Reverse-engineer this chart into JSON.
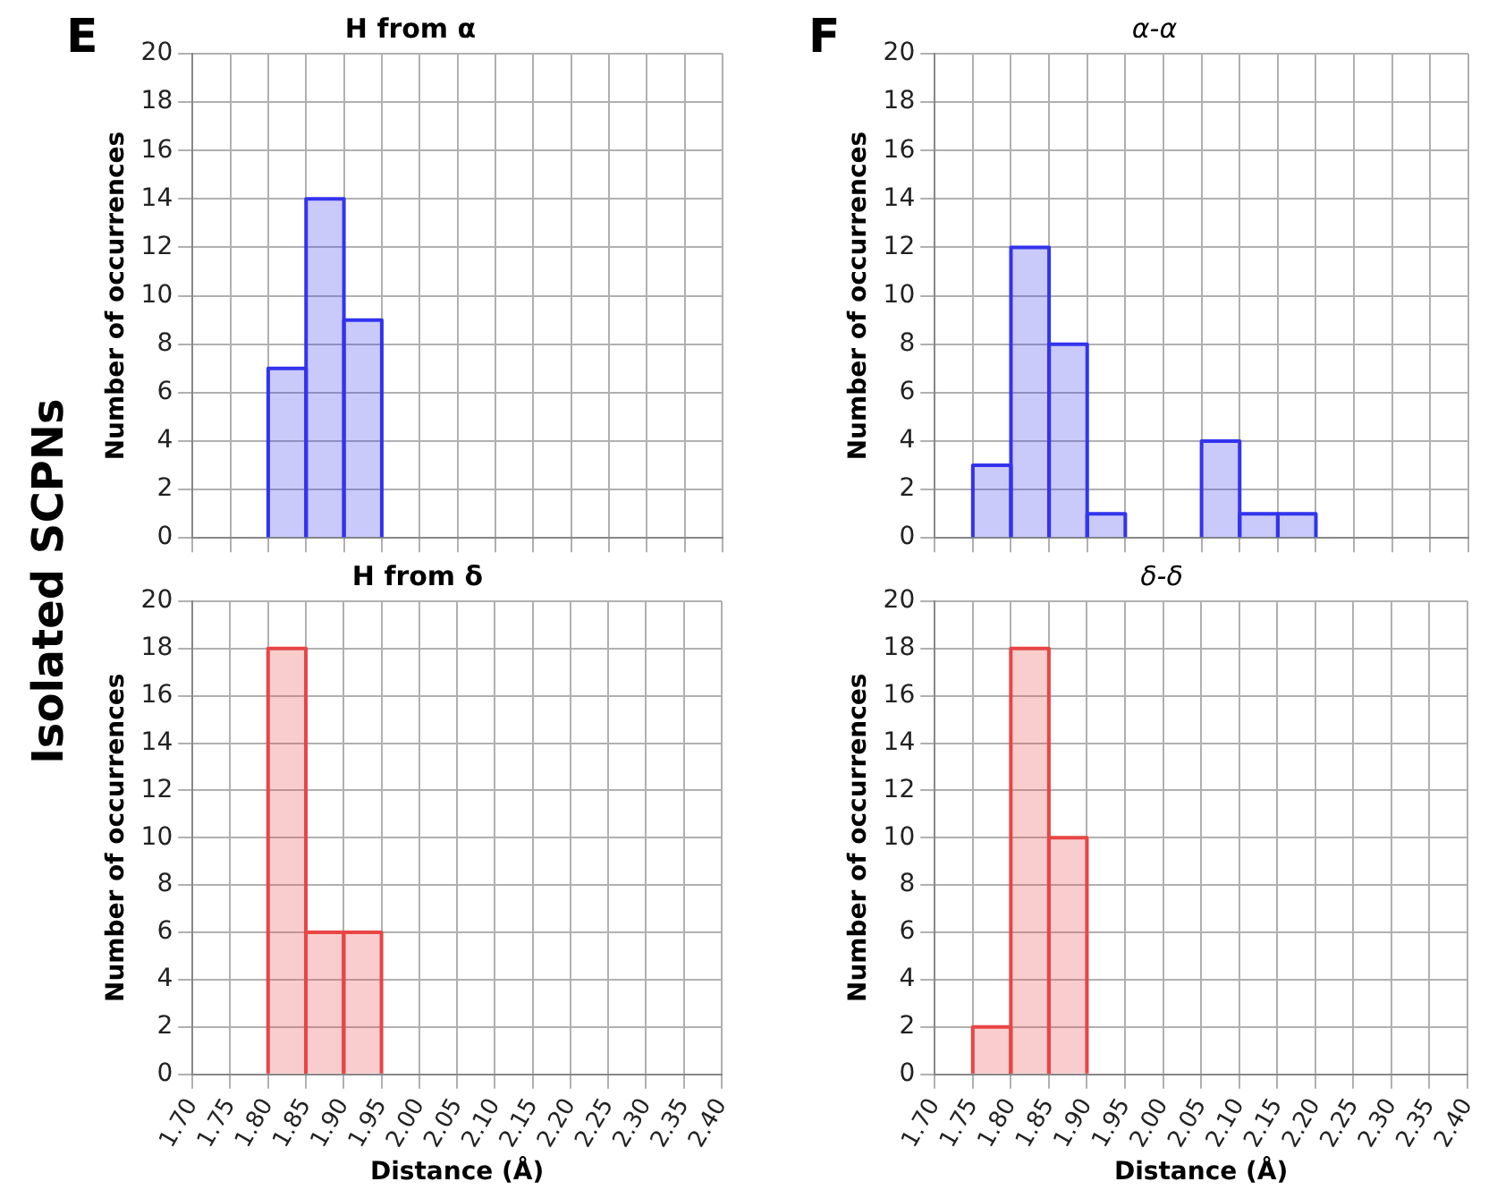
{
  "chart_data": [
    {
      "type": "histogram",
      "title": "H from α",
      "ylabel": "Number of occurrences",
      "annotations": [
        "E",
        "Isolated SCPNs"
      ],
      "bins": [
        1.7,
        1.75,
        1.8,
        1.85,
        1.9,
        1.95,
        2.0,
        2.05,
        2.1,
        2.15,
        2.2,
        2.25,
        2.3,
        2.35,
        2.4
      ],
      "values": [
        0,
        0,
        7,
        14,
        9,
        0,
        0,
        0,
        0,
        0,
        0,
        0,
        0,
        0
      ],
      "color": "#3333ee",
      "xlim": [
        1.7,
        2.4
      ],
      "xticks": [
        {
          "value": 1.7,
          "label": null
        },
        {
          "value": 1.75,
          "label": null
        },
        {
          "value": 1.8,
          "label": null
        },
        {
          "value": 1.85,
          "label": null
        },
        {
          "value": 1.9,
          "label": null
        },
        {
          "value": 1.95,
          "label": null
        },
        {
          "value": 2.0,
          "label": null
        },
        {
          "value": 2.05,
          "label": null
        },
        {
          "value": 2.1,
          "label": null
        },
        {
          "value": 2.15,
          "label": null
        },
        {
          "value": 2.2,
          "label": null
        },
        {
          "value": 2.25,
          "label": null
        },
        {
          "value": 2.3,
          "label": null
        },
        {
          "value": 2.35,
          "label": null
        },
        {
          "value": 2.4,
          "label": null
        }
      ],
      "ylim": [
        0,
        20
      ],
      "yticks": [
        0,
        2,
        4,
        6,
        8,
        10,
        12,
        14,
        16,
        18,
        20
      ],
      "grid": true,
      "tick_labels": "y"
    },
    {
      "type": "histogram",
      "title": "α-α",
      "ylabel": "Number of occurrences",
      "annotations": [
        "F"
      ],
      "bins": [
        1.7,
        1.75,
        1.8,
        1.85,
        1.9,
        1.95,
        2.0,
        2.05,
        2.1,
        2.15,
        2.2,
        2.25,
        2.3,
        2.35,
        2.4
      ],
      "values": [
        0,
        3,
        12,
        8,
        1,
        0,
        0,
        4,
        1,
        1,
        0,
        0,
        0,
        0
      ],
      "color": "#3333ee",
      "xlim": [
        1.7,
        2.4
      ],
      "xticks": [
        {
          "value": 1.7,
          "label": null
        },
        {
          "value": 1.75,
          "label": null
        },
        {
          "value": 1.8,
          "label": null
        },
        {
          "value": 1.85,
          "label": null
        },
        {
          "value": 1.9,
          "label": null
        },
        {
          "value": 1.95,
          "label": null
        },
        {
          "value": 2.0,
          "label": null
        },
        {
          "value": 2.05,
          "label": null
        },
        {
          "value": 2.1,
          "label": null
        },
        {
          "value": 2.15,
          "label": null
        },
        {
          "value": 2.2,
          "label": null
        },
        {
          "value": 2.25,
          "label": null
        },
        {
          "value": 2.3,
          "label": null
        },
        {
          "value": 2.35,
          "label": null
        },
        {
          "value": 2.4,
          "label": null
        }
      ],
      "ylim": [
        0,
        20
      ],
      "yticks": [
        0,
        2,
        4,
        6,
        8,
        10,
        12,
        14,
        16,
        18,
        20
      ],
      "grid": true,
      "tick_labels": "y"
    },
    {
      "type": "histogram",
      "title": "H from δ",
      "xlabel": "Distance (Å)",
      "ylabel": "Number of occurrences",
      "bins": [
        1.7,
        1.75,
        1.8,
        1.85,
        1.9,
        1.95,
        2.0,
        2.05,
        2.1,
        2.15,
        2.2,
        2.25,
        2.3,
        2.35,
        2.4
      ],
      "values": [
        0,
        0,
        18,
        6,
        6,
        0,
        0,
        0,
        0,
        0,
        0,
        0,
        0,
        0
      ],
      "color": "#e84545",
      "xlim": [
        1.7,
        2.4
      ],
      "xticks": [
        {
          "value": 1.7,
          "label": "1.70"
        },
        {
          "value": 1.75,
          "label": "1.75"
        },
        {
          "value": 1.8,
          "label": "1.80"
        },
        {
          "value": 1.85,
          "label": "1.85"
        },
        {
          "value": 1.9,
          "label": "1.90"
        },
        {
          "value": 1.95,
          "label": "1.95"
        },
        {
          "value": 2.0,
          "label": "2.00"
        },
        {
          "value": 2.05,
          "label": "2.05"
        },
        {
          "value": 2.1,
          "label": "2.10"
        },
        {
          "value": 2.15,
          "label": "2.15"
        },
        {
          "value": 2.2,
          "label": "2.20"
        },
        {
          "value": 2.25,
          "label": "2.25"
        },
        {
          "value": 2.3,
          "label": "2.30"
        },
        {
          "value": 2.35,
          "label": "2.35"
        },
        {
          "value": 2.4,
          "label": "2.40"
        }
      ],
      "ylim": [
        0,
        20
      ],
      "yticks": [
        0,
        2,
        4,
        6,
        8,
        10,
        12,
        14,
        16,
        18,
        20
      ],
      "grid": true
    },
    {
      "type": "histogram",
      "title": "δ-δ",
      "xlabel": "Distance (Å)",
      "ylabel": "Number of occurrences",
      "bins": [
        1.7,
        1.75,
        1.8,
        1.85,
        1.9,
        1.95,
        2.0,
        2.05,
        2.1,
        2.15,
        2.2,
        2.25,
        2.3,
        2.35,
        2.4
      ],
      "values": [
        0,
        2,
        18,
        10,
        0,
        0,
        0,
        0,
        0,
        0,
        0,
        0,
        0,
        0
      ],
      "color": "#e84545",
      "xlim": [
        1.7,
        2.4
      ],
      "xticks": [
        {
          "value": 1.7,
          "label": "1.70"
        },
        {
          "value": 1.75,
          "label": "1.75"
        },
        {
          "value": 1.8,
          "label": "1.80"
        },
        {
          "value": 1.85,
          "label": "1.85"
        },
        {
          "value": 1.9,
          "label": "1.90"
        },
        {
          "value": 1.95,
          "label": "1.95"
        },
        {
          "value": 2.0,
          "label": "2.00"
        },
        {
          "value": 2.05,
          "label": "2.05"
        },
        {
          "value": 2.1,
          "label": "2.10"
        },
        {
          "value": 2.15,
          "label": "2.15"
        },
        {
          "value": 2.2,
          "label": "2.20"
        },
        {
          "value": 2.25,
          "label": "2.25"
        },
        {
          "value": 2.3,
          "label": "2.30"
        },
        {
          "value": 2.35,
          "label": "2.35"
        },
        {
          "value": 2.4,
          "label": "2.40"
        }
      ],
      "ylim": [
        0,
        20
      ],
      "yticks": [
        0,
        2,
        4,
        6,
        8,
        10,
        12,
        14,
        16,
        18,
        20
      ],
      "grid": true
    }
  ]
}
